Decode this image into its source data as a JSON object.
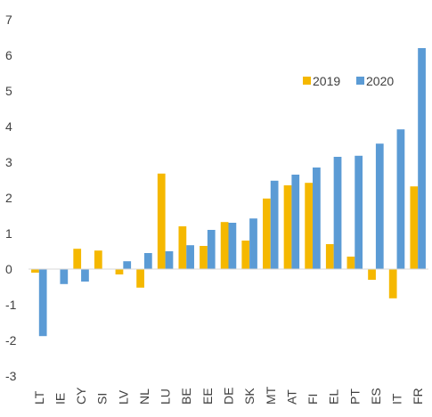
{
  "chart_data": {
    "type": "bar",
    "categories": [
      "LT",
      "IE",
      "CY",
      "SI",
      "LV",
      "NL",
      "LU",
      "BE",
      "EE",
      "DE",
      "SK",
      "MT",
      "AT",
      "FI",
      "EL",
      "PT",
      "ES",
      "IT",
      "FR"
    ],
    "series": [
      {
        "name": "2019",
        "color": "#F5B800",
        "values": [
          -0.1,
          0.0,
          0.57,
          0.52,
          -0.15,
          -0.52,
          2.68,
          1.2,
          0.65,
          1.32,
          0.8,
          1.98,
          2.35,
          2.42,
          0.7,
          0.35,
          -0.3,
          -0.82,
          2.32
        ]
      },
      {
        "name": "2020",
        "color": "#5B9BD5",
        "values": [
          -1.88,
          -0.42,
          -0.35,
          0.0,
          0.22,
          0.45,
          0.5,
          0.67,
          1.1,
          1.3,
          1.42,
          2.48,
          2.65,
          2.85,
          3.15,
          3.18,
          3.52,
          3.92,
          6.2
        ]
      }
    ],
    "y_ticks": [
      "-3",
      "-2",
      "-1",
      "0",
      "1",
      "2",
      "3",
      "4",
      "5",
      "6",
      "7"
    ],
    "ylim": [
      -3,
      7
    ],
    "legend_position": "top-right",
    "grid": false
  }
}
